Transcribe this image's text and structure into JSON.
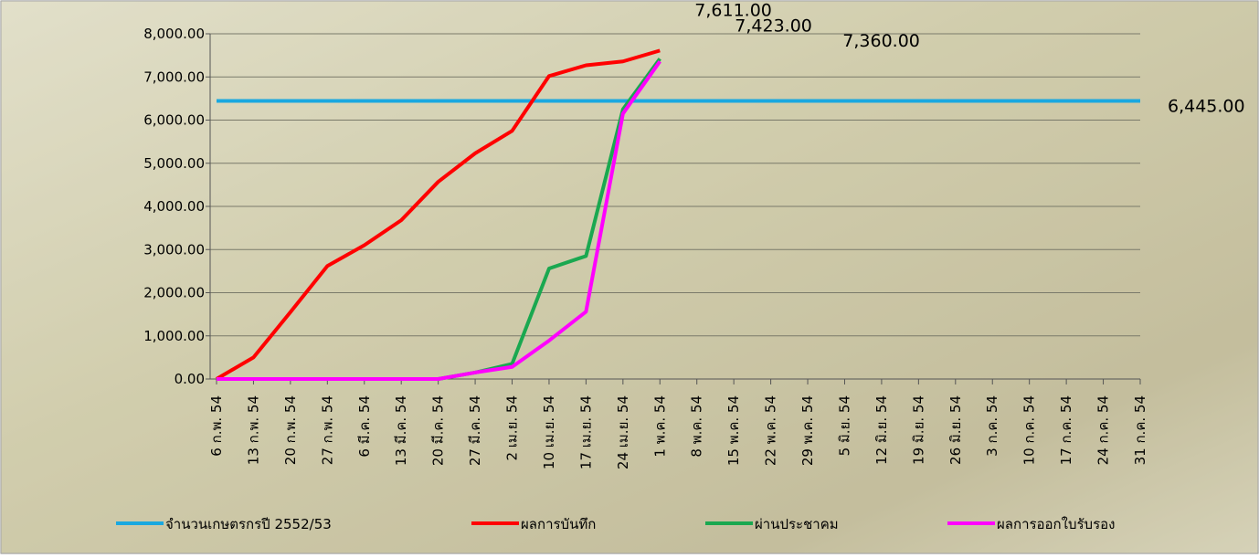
{
  "chart_data": {
    "type": "line",
    "categories": [
      "6 ก.พ. 54",
      "13 ก.พ. 54",
      "20 ก.พ. 54",
      "27 ก.พ. 54",
      "6 มี.ค. 54",
      "13 มี.ค. 54",
      "20 มี.ค. 54",
      "27 มี.ค. 54",
      "2 เม.ย. 54",
      "10 เม.ย. 54",
      "17 เม.ย. 54",
      "24 เม.ย. 54",
      "1 พ.ค. 54",
      "8 พ.ค. 54",
      "15 พ.ค. 54",
      "22 พ.ค. 54",
      "29 พ.ค. 54",
      "5 มิ.ย. 54",
      "12 มิ.ย. 54",
      "19 มิ.ย. 54",
      "26 มิ.ย. 54",
      "3 ก.ค. 54",
      "10 ก.ค. 54",
      "17 ก.ค. 54",
      "24 ก.ค. 54",
      "31 ก.ค. 54"
    ],
    "series": [
      {
        "name": "จำนวนเกษตรกรปี  2552/53",
        "color": "#1aa8e0",
        "label_color": "#000000",
        "values": [
          6445,
          6445,
          6445,
          6445,
          6445,
          6445,
          6445,
          6445,
          6445,
          6445,
          6445,
          6445,
          6445,
          6445,
          6445,
          6445,
          6445,
          6445,
          6445,
          6445,
          6445,
          6445,
          6445,
          6445,
          6445,
          6445
        ],
        "value_labels": [
          null,
          null,
          null,
          null,
          null,
          null,
          null,
          null,
          null,
          null,
          null,
          null,
          null,
          null,
          null,
          null,
          null,
          null,
          null,
          null,
          null,
          null,
          null,
          null,
          null,
          "6,445.00"
        ]
      },
      {
        "name": "ผลการบันทึก",
        "color": "#ff0000",
        "label_color": "#ff0000",
        "values": [
          0,
          500,
          1550,
          2620,
          3100,
          3680,
          4570,
          5230,
          5750,
          7020,
          7270,
          7360,
          7611,
          null,
          null,
          null,
          null,
          null,
          null,
          null,
          null,
          null,
          null,
          null,
          null,
          null
        ],
        "value_labels": [
          null,
          null,
          null,
          null,
          null,
          null,
          null,
          null,
          null,
          null,
          null,
          null,
          "7,611.00",
          null,
          null,
          null,
          null,
          null,
          null,
          null,
          null,
          null,
          null,
          null,
          null,
          null
        ]
      },
      {
        "name": "ผ่านประชาคม",
        "color": "#1aa850",
        "label_color": "#1aa850",
        "values": [
          0,
          0,
          0,
          0,
          0,
          0,
          0,
          150,
          350,
          2560,
          2850,
          6250,
          7423,
          null,
          null,
          null,
          null,
          null,
          null,
          null,
          null,
          null,
          null,
          null,
          null,
          null
        ],
        "value_labels": [
          null,
          null,
          null,
          null,
          null,
          null,
          null,
          null,
          null,
          null,
          null,
          null,
          "7,423.00",
          null,
          null,
          null,
          null,
          null,
          null,
          null,
          null,
          null,
          null,
          null,
          null,
          null
        ]
      },
      {
        "name": "ผลการออกใบรับรอง",
        "color": "#ff00ff",
        "label_color": "#cc00cc",
        "values": [
          0,
          0,
          0,
          0,
          0,
          0,
          0,
          150,
          280,
          890,
          1560,
          6150,
          7360,
          null,
          null,
          null,
          null,
          null,
          null,
          null,
          null,
          null,
          null,
          null,
          null,
          null
        ],
        "value_labels": [
          null,
          null,
          null,
          null,
          null,
          null,
          null,
          null,
          null,
          null,
          null,
          null,
          "7,360.00",
          null,
          null,
          null,
          null,
          null,
          null,
          null,
          null,
          null,
          null,
          null,
          null,
          null
        ]
      }
    ],
    "ylim": [
      0,
      8000
    ],
    "yticks": [
      {
        "value": 0,
        "label": "0.00"
      },
      {
        "value": 1000,
        "label": "1,000.00"
      },
      {
        "value": 2000,
        "label": "2,000.00"
      },
      {
        "value": 3000,
        "label": "3,000.00"
      },
      {
        "value": 4000,
        "label": "4,000.00"
      },
      {
        "value": 5000,
        "label": "5,000.00"
      },
      {
        "value": 6000,
        "label": "6,000.00"
      },
      {
        "value": 7000,
        "label": "7,000.00"
      },
      {
        "value": 8000,
        "label": "8,000.00"
      }
    ],
    "grid": true,
    "legend": "bottom"
  }
}
